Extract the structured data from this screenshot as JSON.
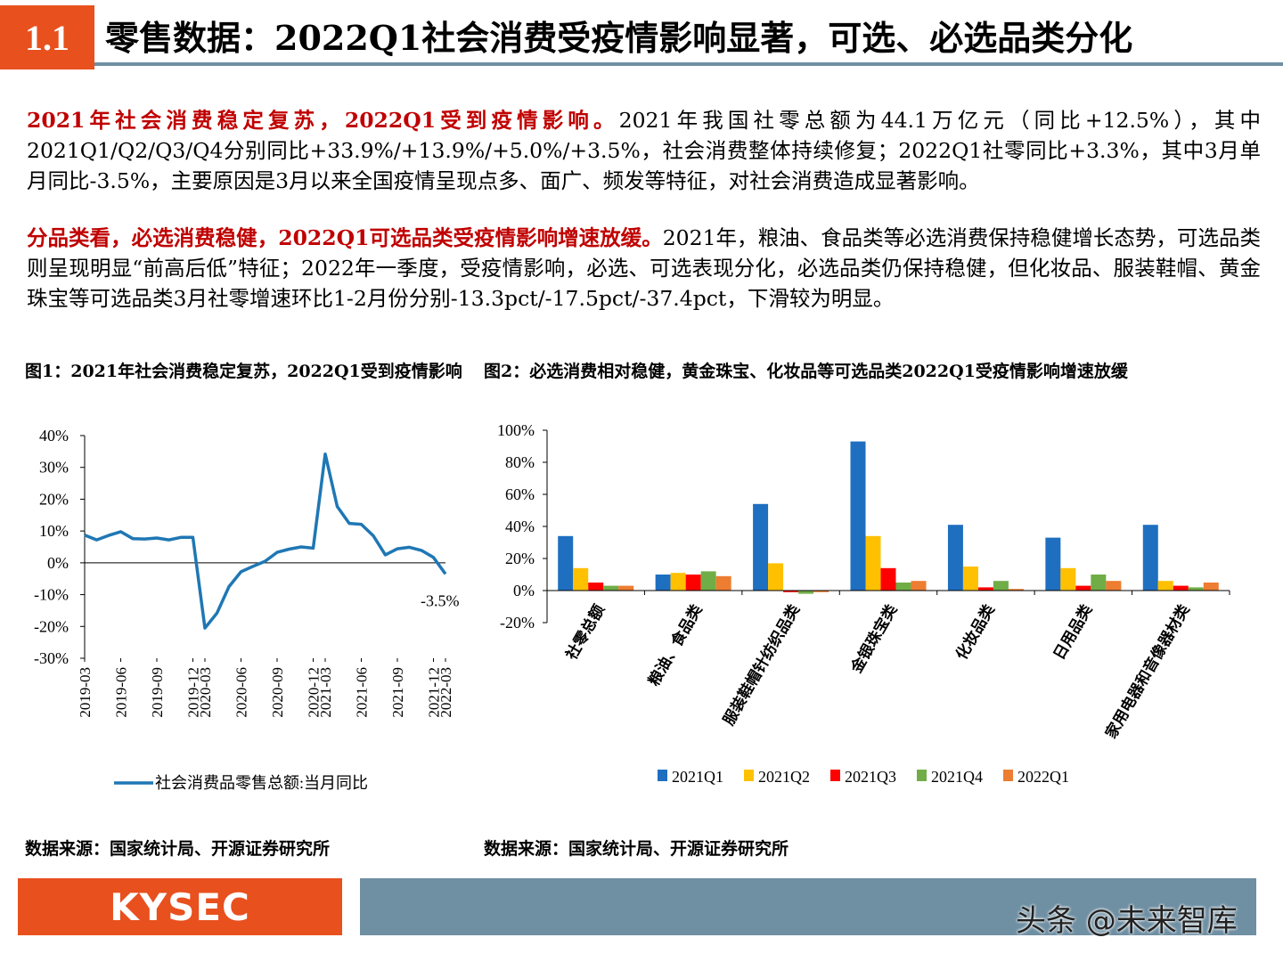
{
  "header": {
    "section_number": "1.1",
    "title": "零售数据：2022Q1社会消费受疫情影响显著，可选、必选品类分化"
  },
  "body": {
    "para1_lead": "2021年社会消费稳定复苏，2022Q1受到疫情影响。",
    "para1_text": "2021年我国社零总额为44.1万亿元（同比+12.5%），其中2021Q1/Q2/Q3/Q4分别同比+33.9%/+13.9%/+5.0%/+3.5%，社会消费整体持续修复；2022Q1社零同比+3.3%，其中3月单月同比-3.5%，主要原因是3月以来全国疫情呈现点多、面广、频发等特征，对社会消费造成显著影响。",
    "para2_lead": "分品类看，必选消费稳健，2022Q1可选品类受疫情影响增速放缓。",
    "para2_text": "2021年，粮油、食品类等必选消费保持稳健增长态势，可选品类则呈现明显“前高后低”特征；2022年一季度，受疫情影响，必选、可选表现分化，必选品类仍保持稳健，但化妆品、服装鞋帽、黄金珠宝等可选品类3月社零增速环比1-2月份分别-13.3pct/-17.5pct/-37.4pct，下滑较为明显。"
  },
  "figures": {
    "fig1_title": "图1：2021年社会消费稳定复苏，2022Q1受到疫情影响",
    "fig2_title": "图2：必选消费相对稳健，黄金珠宝、化妆品等可选品类2022Q1受疫情影响增速放缓",
    "fig1_source": "数据来源：国家统计局、开源证券研究所",
    "fig2_source": "数据来源：国家统计局、开源证券研究所"
  },
  "footer": {
    "logo": "KYSEC",
    "watermark": "头条 @未来智库"
  },
  "chart_data": [
    {
      "type": "line",
      "x": [
        "2019-03",
        "2019-04",
        "2019-05",
        "2019-06",
        "2019-07",
        "2019-08",
        "2019-09",
        "2019-10",
        "2019-11",
        "2019-12",
        "2020-03",
        "2020-04",
        "2020-05",
        "2020-06",
        "2020-07",
        "2020-08",
        "2020-09",
        "2020-10",
        "2020-11",
        "2020-12",
        "2021-03",
        "2021-04",
        "2021-05",
        "2021-06",
        "2021-07",
        "2021-08",
        "2021-09",
        "2021-10",
        "2021-11",
        "2021-12",
        "2022-03"
      ],
      "x_tick_labels": [
        "2019-03",
        "2019-06",
        "2019-09",
        "2019-12",
        "2020-03",
        "2020-06",
        "2020-09",
        "2020-12",
        "2021-03",
        "2021-06",
        "2021-09",
        "2021-12",
        "2022-03"
      ],
      "series": [
        {
          "name": "社会消费品零售总额:当月同比",
          "color": "#1f77b4",
          "values": [
            8.7,
            7.2,
            8.6,
            9.8,
            7.6,
            7.5,
            7.8,
            7.2,
            8.0,
            8.0,
            -20.5,
            -15.8,
            -7.5,
            -2.8,
            -1.1,
            0.5,
            3.3,
            4.3,
            5.0,
            4.6,
            34.2,
            17.7,
            12.4,
            12.1,
            8.5,
            2.5,
            4.4,
            4.9,
            3.9,
            1.7,
            -3.5
          ]
        }
      ],
      "ylim": [
        -30,
        40
      ],
      "y_ticks": [
        "40%",
        "30%",
        "20%",
        "10%",
        "0%",
        "-10%",
        "-20%",
        "-30%"
      ],
      "annotations": [
        "-3.5%"
      ],
      "legend_position": "bottom"
    },
    {
      "type": "bar",
      "categories": [
        "社零总额",
        "粮油、食品类",
        "服装鞋帽针纺织品类",
        "金银珠宝类",
        "化妆品类",
        "日用品类",
        "家用电器和音像器材类"
      ],
      "series": [
        {
          "name": "2021Q1",
          "color": "#1f6fc1",
          "values": [
            34,
            10,
            54,
            93,
            41,
            33,
            41
          ]
        },
        {
          "name": "2021Q2",
          "color": "#ffc000",
          "values": [
            14,
            11,
            17,
            34,
            15,
            14,
            6
          ]
        },
        {
          "name": "2021Q3",
          "color": "#ff0000",
          "values": [
            5,
            10,
            -1,
            14,
            2,
            3,
            3
          ]
        },
        {
          "name": "2021Q4",
          "color": "#70ad47",
          "values": [
            3,
            12,
            -2,
            5,
            6,
            10,
            2
          ]
        },
        {
          "name": "2022Q1",
          "color": "#ed7d31",
          "values": [
            3,
            9,
            -1,
            6,
            1,
            6,
            5
          ]
        }
      ],
      "ylim": [
        -20,
        100
      ],
      "y_ticks": [
        "100%",
        "80%",
        "60%",
        "40%",
        "20%",
        "0%",
        "-20%"
      ],
      "legend_position": "bottom"
    }
  ]
}
